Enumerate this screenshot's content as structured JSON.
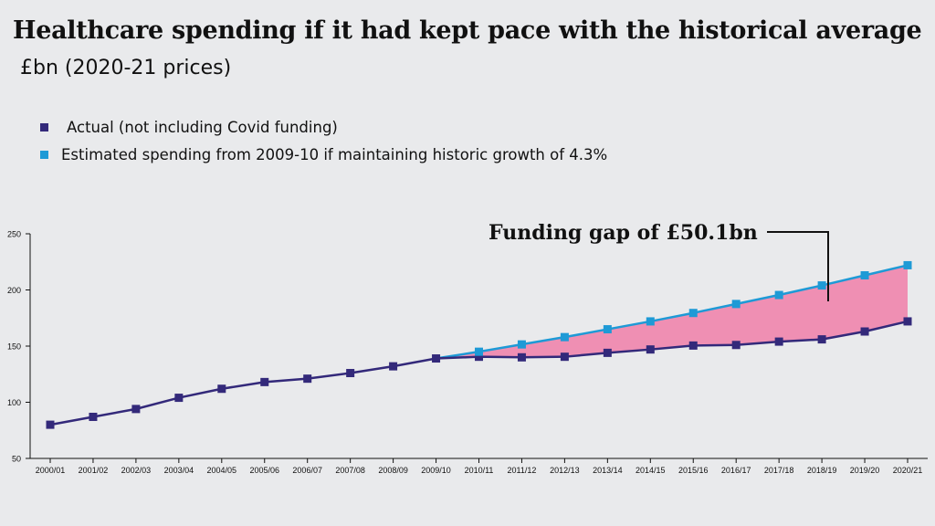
{
  "title": "Healthcare spending if it had kept pace with the historical average",
  "subtitle": "£bn (2020-21 prices)",
  "legend": [
    {
      "label": "Actual (not including Covid funding)",
      "color": "#33297a"
    },
    {
      "label": "Estimated spending from 2009-10 if maintaining historic growth of 4.3%",
      "color": "#1e9ad6"
    }
  ],
  "annotation": "Funding gap of £50.1bn",
  "colors": {
    "actual": "#33297a",
    "estimated": "#1e9ad6",
    "gap_fill": "#ef8fb3",
    "axis": "#111111"
  },
  "chart_data": {
    "type": "line",
    "title": "Healthcare spending if it had kept pace with the historical average",
    "ylabel": "£bn (2020-21 prices)",
    "x": [
      "2000/01",
      "2001/02",
      "2002/03",
      "2003/04",
      "2004/05",
      "2005/06",
      "2006/07",
      "2007/08",
      "2008/09",
      "2009/10",
      "2010/11",
      "2011/12",
      "2012/13",
      "2013/14",
      "2014/15",
      "2015/16",
      "2016/17",
      "2017/18",
      "2018/19",
      "2019/20",
      "2020/21"
    ],
    "ylim": [
      50,
      250
    ],
    "yticks": [
      "250",
      "200",
      "150",
      "100",
      "50"
    ],
    "grid": false,
    "series": [
      {
        "name": "Actual (not including Covid funding)",
        "values": [
          80,
          87,
          94,
          104,
          112,
          118,
          121,
          126,
          132,
          139,
          140.5,
          140,
          140.5,
          144,
          147,
          150.5,
          151,
          154,
          156,
          163,
          172
        ]
      },
      {
        "name": "Estimated spending from 2009-10 if maintaining historic growth of 4.3%",
        "values": [
          null,
          null,
          null,
          null,
          null,
          null,
          null,
          null,
          null,
          139,
          145,
          151.5,
          158,
          165,
          172,
          179.5,
          187.5,
          195.5,
          204,
          213,
          222
        ]
      }
    ],
    "annotations": [
      {
        "text": "Funding gap of £50.1bn",
        "between_series": true
      }
    ]
  }
}
